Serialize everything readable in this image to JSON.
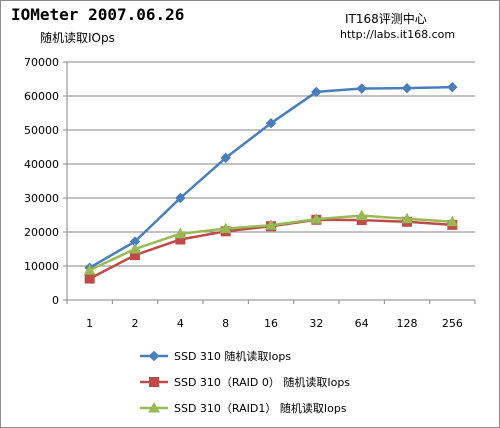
{
  "header": {
    "title": "IOMeter  2007.06.26",
    "subtitle": "随机读取IOps",
    "source_name": "IT168评测中心",
    "source_url": "http://labs.it168.com"
  },
  "chart_data": {
    "type": "line",
    "title": "随机读取IOps",
    "xlabel": "",
    "ylabel": "",
    "categories": [
      "1",
      "2",
      "4",
      "8",
      "16",
      "32",
      "64",
      "128",
      "256"
    ],
    "ylim": [
      0,
      70000
    ],
    "yticks": [
      0,
      10000,
      20000,
      30000,
      40000,
      50000,
      60000,
      70000
    ],
    "ytick_labels": [
      "0",
      "10000",
      "20000",
      "30000",
      "40000",
      "50000",
      "60000",
      "70000"
    ],
    "grid": true,
    "legend_position": "bottom",
    "series": [
      {
        "name": "SSD 310 随机读取Iops",
        "values": [
          9500,
          17200,
          30000,
          41800,
          52000,
          61200,
          62200,
          62300,
          62600
        ],
        "color": "#4a7ebb",
        "marker": "diamond"
      },
      {
        "name": "SSD 310（RAID 0） 随机读取Iops",
        "values": [
          6300,
          13200,
          17800,
          20200,
          21700,
          23600,
          23500,
          23000,
          22100
        ],
        "color": "#be4b48",
        "marker": "square"
      },
      {
        "name": "SSD 310（RAID1） 随机读取Iops",
        "values": [
          8800,
          15000,
          19500,
          21000,
          22000,
          23800,
          24800,
          23900,
          23000
        ],
        "color": "#98b954",
        "marker": "triangle"
      }
    ]
  }
}
